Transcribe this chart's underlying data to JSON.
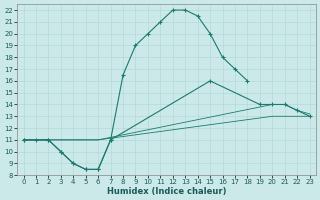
{
  "xlabel": "Humidex (Indice chaleur)",
  "xlim": [
    -0.5,
    23.5
  ],
  "ylim": [
    8,
    22.5
  ],
  "xticks": [
    0,
    1,
    2,
    3,
    4,
    5,
    6,
    7,
    8,
    9,
    10,
    11,
    12,
    13,
    14,
    15,
    16,
    17,
    18,
    19,
    20,
    21,
    22,
    23
  ],
  "yticks": [
    8,
    9,
    10,
    11,
    12,
    13,
    14,
    15,
    16,
    17,
    18,
    19,
    20,
    21,
    22
  ],
  "bg_color": "#cce9e9",
  "grid_color": "#b0d4d4",
  "line_color": "#1a7a6e",
  "curve1_x": [
    0,
    1,
    2,
    3,
    4,
    5,
    6,
    7,
    8,
    9,
    10,
    11,
    12,
    13,
    14,
    15,
    16,
    17,
    18
  ],
  "curve1_y": [
    11,
    11,
    11,
    10,
    9,
    8.5,
    8.5,
    11,
    16.5,
    19,
    20,
    21,
    22,
    22,
    21.5,
    20,
    18,
    17,
    16
  ],
  "curve2_x": [
    0,
    2,
    3,
    4,
    5,
    6,
    7,
    15,
    19,
    20,
    21,
    22,
    23
  ],
  "curve2_y": [
    11,
    11,
    10,
    9,
    8.5,
    8.5,
    11,
    16,
    14,
    14,
    14,
    13.5,
    13
  ],
  "curve3_x": [
    0,
    6,
    20,
    21,
    22,
    23
  ],
  "curve3_y": [
    11,
    11,
    14,
    14,
    13.5,
    13.2
  ],
  "curve4_x": [
    0,
    6,
    20,
    22,
    23
  ],
  "curve4_y": [
    11,
    11,
    13,
    13,
    13
  ],
  "figsize": [
    3.2,
    2.0
  ],
  "dpi": 100,
  "tick_fontsize": 5,
  "label_fontsize": 6
}
